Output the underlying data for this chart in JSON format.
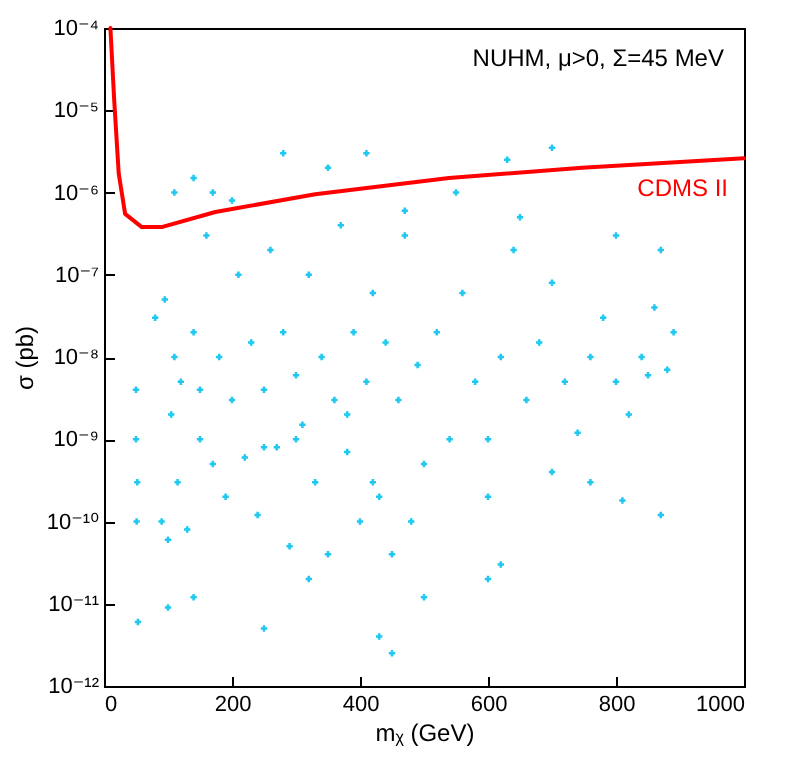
{
  "chart_data": {
    "type": "scatter",
    "xlabel": "mᵪ (GeV)",
    "ylabel": "σ (pb)",
    "annotations": [
      "NUHM, μ>0, Σ=45 MeV"
    ],
    "log": "y",
    "xlim": [
      0,
      1000
    ],
    "xticks": [
      0,
      200,
      400,
      600,
      800,
      1000
    ],
    "ylim": [
      1e-12,
      0.0001
    ],
    "yticks": [
      {
        "value": 1e-12,
        "label": "10⁻¹²"
      },
      {
        "value": 1e-11,
        "label": "10⁻¹¹"
      },
      {
        "value": 1e-10,
        "label": "10⁻¹⁰"
      },
      {
        "value": 1e-09,
        "label": "10⁻⁹"
      },
      {
        "value": 1e-08,
        "label": "10⁻⁸"
      },
      {
        "value": 1e-07,
        "label": "10⁻⁷"
      },
      {
        "value": 1e-06,
        "label": "10⁻⁶"
      },
      {
        "value": 1e-05,
        "label": "10⁻⁵"
      },
      {
        "value": 0.0001,
        "label": "10⁻⁴"
      }
    ],
    "legend": false,
    "series": [
      {
        "color": "#1ec8f0",
        "marker": "cross",
        "x": [
          50,
          50,
          52,
          51,
          53,
          80,
          90,
          95,
          100,
          105,
          110,
          115,
          120,
          130,
          140,
          150,
          160,
          170,
          180,
          190,
          200,
          210,
          220,
          230,
          240,
          250,
          260,
          270,
          280,
          290,
          300,
          310,
          320,
          330,
          340,
          350,
          360,
          370,
          380,
          390,
          400,
          410,
          420,
          430,
          440,
          450,
          460,
          470,
          480,
          490,
          500,
          520,
          540,
          560,
          580,
          600,
          620,
          640,
          660,
          680,
          700,
          720,
          740,
          760,
          780,
          800,
          820,
          840,
          860,
          880,
          110,
          140,
          170,
          200,
          280,
          350,
          410,
          470,
          550,
          630,
          700,
          650,
          800,
          870,
          100,
          140,
          250,
          430,
          450,
          500,
          320,
          600,
          620,
          850,
          870,
          810,
          760,
          700,
          600,
          890,
          300,
          420,
          150,
          250,
          380
        ],
        "values": [
          4e-09,
          1e-09,
          3e-10,
          1e-10,
          6e-12,
          3e-08,
          1e-10,
          5e-08,
          6e-11,
          2e-09,
          1e-08,
          3e-10,
          5e-09,
          8e-11,
          2e-08,
          1e-09,
          3e-07,
          5e-10,
          1e-08,
          2e-10,
          3e-09,
          1e-07,
          6e-10,
          1.5e-08,
          1.2e-10,
          4e-09,
          2e-07,
          8e-10,
          2e-08,
          5e-11,
          6e-09,
          1.5e-09,
          1e-07,
          3e-10,
          1e-08,
          4e-11,
          3e-09,
          4e-07,
          7e-10,
          2e-08,
          1e-10,
          5e-09,
          6e-08,
          2e-10,
          1.5e-08,
          4e-11,
          3e-09,
          3e-07,
          1e-10,
          8e-09,
          5e-10,
          2e-08,
          1e-09,
          6e-08,
          5e-09,
          2e-10,
          1e-08,
          2e-07,
          3e-09,
          1.5e-08,
          8e-08,
          5e-09,
          1.2e-09,
          1e-08,
          3e-08,
          5e-09,
          2e-09,
          1e-08,
          4e-08,
          7e-09,
          1e-06,
          1.5e-06,
          1e-06,
          8e-07,
          3e-06,
          2e-06,
          3e-06,
          6e-07,
          1e-06,
          2.5e-06,
          3.5e-06,
          5e-07,
          3e-07,
          2e-07,
          9e-12,
          1.2e-11,
          5e-12,
          4e-12,
          2.5e-12,
          1.2e-11,
          2e-11,
          2e-11,
          3e-11,
          6e-09,
          1.2e-10,
          1.8e-10,
          3e-10,
          4e-10,
          1e-09,
          2e-08,
          1e-09,
          3e-10,
          4e-09,
          8e-10,
          2e-09
        ]
      },
      {
        "type": "line",
        "marker": "none",
        "name": "CDMS II",
        "color": "#ff0000",
        "x": [
          10,
          16,
          23,
          33,
          59,
          90,
          174,
          330,
          539,
          747,
          1000
        ],
        "values": [
          0.0001,
          1.3e-05,
          1.7e-06,
          5.5e-07,
          3.8e-07,
          3.8e-07,
          5.8e-07,
          9.5e-07,
          1.5e-06,
          2e-06,
          2.6e-06
        ]
      }
    ]
  }
}
